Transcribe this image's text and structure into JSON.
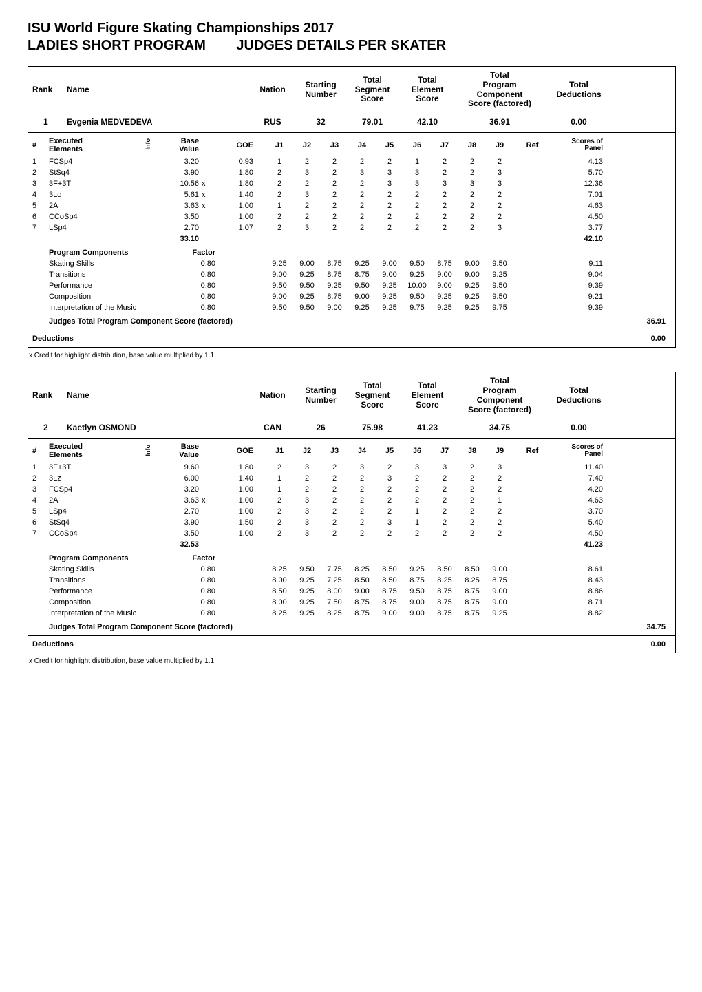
{
  "page": {
    "title_line1": "ISU World Figure Skating Championships 2017",
    "title_line2_a": "LADIES SHORT PROGRAM",
    "title_line2_b": "JUDGES DETAILS PER SKATER"
  },
  "header_labels": {
    "rank": "Rank",
    "name": "Name",
    "nation": "Nation",
    "starting_number_l1": "Starting",
    "starting_number_l2": "Number",
    "total_segment_l1": "Total",
    "total_segment_l2": "Segment",
    "total_segment_l3": "Score",
    "total_element_l1": "Total",
    "total_element_l2": "Element",
    "total_element_l3": "Score",
    "total_pcs_l1": "Total",
    "total_pcs_l2": "Program Component",
    "total_pcs_l3": "Score (factored)",
    "total_ded_l1": "Total",
    "total_ded_l2": "Deductions"
  },
  "elem_header": {
    "num": "#",
    "executed_l1": "Executed",
    "executed_l2": "Elements",
    "info": "Info",
    "base_l1": "Base",
    "base_l2": "Value",
    "goe": "GOE",
    "j": [
      "J1",
      "J2",
      "J3",
      "J4",
      "J5",
      "J6",
      "J7",
      "J8",
      "J9"
    ],
    "ref": "Ref",
    "sop_l1": "Scores of",
    "sop_l2": "Panel"
  },
  "prog_comp_header": {
    "title": "Program Components",
    "factor": "Factor"
  },
  "judges_total_label": "Judges Total Program Component Score (factored)",
  "deductions_label": "Deductions",
  "footnote_text": "x  Credit for highlight distribution, base value multiplied by 1.1",
  "skaters": [
    {
      "rank": "1",
      "name": "Evgenia MEDVEDEVA",
      "nation": "RUS",
      "start_no": "32",
      "seg_score": "79.01",
      "elem_score": "42.10",
      "pcs_score": "36.91",
      "ded_score": "0.00",
      "elements": [
        {
          "n": "1",
          "exec": "FCSp4",
          "info": "",
          "base": "3.20",
          "x": "",
          "goe": "0.93",
          "j": [
            "1",
            "2",
            "2",
            "2",
            "2",
            "1",
            "2",
            "2",
            "2"
          ],
          "ref": "",
          "sop": "4.13"
        },
        {
          "n": "2",
          "exec": "StSq4",
          "info": "",
          "base": "3.90",
          "x": "",
          "goe": "1.80",
          "j": [
            "2",
            "3",
            "2",
            "3",
            "3",
            "3",
            "2",
            "2",
            "3"
          ],
          "ref": "",
          "sop": "5.70"
        },
        {
          "n": "3",
          "exec": "3F+3T",
          "info": "",
          "base": "10.56",
          "x": "x",
          "goe": "1.80",
          "j": [
            "2",
            "2",
            "2",
            "2",
            "3",
            "3",
            "3",
            "3",
            "3"
          ],
          "ref": "",
          "sop": "12.36"
        },
        {
          "n": "4",
          "exec": "3Lo",
          "info": "",
          "base": "5.61",
          "x": "x",
          "goe": "1.40",
          "j": [
            "2",
            "3",
            "2",
            "2",
            "2",
            "2",
            "2",
            "2",
            "2"
          ],
          "ref": "",
          "sop": "7.01"
        },
        {
          "n": "5",
          "exec": "2A",
          "info": "",
          "base": "3.63",
          "x": "x",
          "goe": "1.00",
          "j": [
            "1",
            "2",
            "2",
            "2",
            "2",
            "2",
            "2",
            "2",
            "2"
          ],
          "ref": "",
          "sop": "4.63"
        },
        {
          "n": "6",
          "exec": "CCoSp4",
          "info": "",
          "base": "3.50",
          "x": "",
          "goe": "1.00",
          "j": [
            "2",
            "2",
            "2",
            "2",
            "2",
            "2",
            "2",
            "2",
            "2"
          ],
          "ref": "",
          "sop": "4.50"
        },
        {
          "n": "7",
          "exec": "LSp4",
          "info": "",
          "base": "2.70",
          "x": "",
          "goe": "1.07",
          "j": [
            "2",
            "3",
            "2",
            "2",
            "2",
            "2",
            "2",
            "2",
            "3"
          ],
          "ref": "",
          "sop": "3.77"
        }
      ],
      "base_total": "33.10",
      "sop_total": "42.10",
      "components": [
        {
          "name": "Skating Skills",
          "factor": "0.80",
          "j": [
            "9.25",
            "9.00",
            "8.75",
            "9.25",
            "9.00",
            "9.50",
            "8.75",
            "9.00",
            "9.50"
          ],
          "score": "9.11"
        },
        {
          "name": "Transitions",
          "factor": "0.80",
          "j": [
            "9.00",
            "9.25",
            "8.75",
            "8.75",
            "9.00",
            "9.25",
            "9.00",
            "9.00",
            "9.25"
          ],
          "score": "9.04"
        },
        {
          "name": "Performance",
          "factor": "0.80",
          "j": [
            "9.50",
            "9.50",
            "9.25",
            "9.50",
            "9.25",
            "10.00",
            "9.00",
            "9.25",
            "9.50"
          ],
          "score": "9.39"
        },
        {
          "name": "Composition",
          "factor": "0.80",
          "j": [
            "9.00",
            "9.25",
            "8.75",
            "9.00",
            "9.25",
            "9.50",
            "9.25",
            "9.25",
            "9.50"
          ],
          "score": "9.21"
        },
        {
          "name": "Interpretation of the Music",
          "factor": "0.80",
          "j": [
            "9.50",
            "9.50",
            "9.00",
            "9.25",
            "9.25",
            "9.75",
            "9.25",
            "9.25",
            "9.75"
          ],
          "score": "9.39"
        }
      ],
      "pcs_total": "36.91",
      "ded_total": "0.00"
    },
    {
      "rank": "2",
      "name": "Kaetlyn OSMOND",
      "nation": "CAN",
      "start_no": "26",
      "seg_score": "75.98",
      "elem_score": "41.23",
      "pcs_score": "34.75",
      "ded_score": "0.00",
      "elements": [
        {
          "n": "1",
          "exec": "3F+3T",
          "info": "",
          "base": "9.60",
          "x": "",
          "goe": "1.80",
          "j": [
            "2",
            "3",
            "2",
            "3",
            "2",
            "3",
            "3",
            "2",
            "3"
          ],
          "ref": "",
          "sop": "11.40"
        },
        {
          "n": "2",
          "exec": "3Lz",
          "info": "",
          "base": "6.00",
          "x": "",
          "goe": "1.40",
          "j": [
            "1",
            "2",
            "2",
            "2",
            "3",
            "2",
            "2",
            "2",
            "2"
          ],
          "ref": "",
          "sop": "7.40"
        },
        {
          "n": "3",
          "exec": "FCSp4",
          "info": "",
          "base": "3.20",
          "x": "",
          "goe": "1.00",
          "j": [
            "1",
            "2",
            "2",
            "2",
            "2",
            "2",
            "2",
            "2",
            "2"
          ],
          "ref": "",
          "sop": "4.20"
        },
        {
          "n": "4",
          "exec": "2A",
          "info": "",
          "base": "3.63",
          "x": "x",
          "goe": "1.00",
          "j": [
            "2",
            "3",
            "2",
            "2",
            "2",
            "2",
            "2",
            "2",
            "1"
          ],
          "ref": "",
          "sop": "4.63"
        },
        {
          "n": "5",
          "exec": "LSp4",
          "info": "",
          "base": "2.70",
          "x": "",
          "goe": "1.00",
          "j": [
            "2",
            "3",
            "2",
            "2",
            "2",
            "1",
            "2",
            "2",
            "2"
          ],
          "ref": "",
          "sop": "3.70"
        },
        {
          "n": "6",
          "exec": "StSq4",
          "info": "",
          "base": "3.90",
          "x": "",
          "goe": "1.50",
          "j": [
            "2",
            "3",
            "2",
            "2",
            "3",
            "1",
            "2",
            "2",
            "2"
          ],
          "ref": "",
          "sop": "5.40"
        },
        {
          "n": "7",
          "exec": "CCoSp4",
          "info": "",
          "base": "3.50",
          "x": "",
          "goe": "1.00",
          "j": [
            "2",
            "3",
            "2",
            "2",
            "2",
            "2",
            "2",
            "2",
            "2"
          ],
          "ref": "",
          "sop": "4.50"
        }
      ],
      "base_total": "32.53",
      "sop_total": "41.23",
      "components": [
        {
          "name": "Skating Skills",
          "factor": "0.80",
          "j": [
            "8.25",
            "9.50",
            "7.75",
            "8.25",
            "8.50",
            "9.25",
            "8.50",
            "8.50",
            "9.00"
          ],
          "score": "8.61"
        },
        {
          "name": "Transitions",
          "factor": "0.80",
          "j": [
            "8.00",
            "9.25",
            "7.25",
            "8.50",
            "8.50",
            "8.75",
            "8.25",
            "8.25",
            "8.75"
          ],
          "score": "8.43"
        },
        {
          "name": "Performance",
          "factor": "0.80",
          "j": [
            "8.50",
            "9.25",
            "8.00",
            "9.00",
            "8.75",
            "9.50",
            "8.75",
            "8.75",
            "9.00"
          ],
          "score": "8.86"
        },
        {
          "name": "Composition",
          "factor": "0.80",
          "j": [
            "8.00",
            "9.25",
            "7.50",
            "8.75",
            "8.75",
            "9.00",
            "8.75",
            "8.75",
            "9.00"
          ],
          "score": "8.71"
        },
        {
          "name": "Interpretation of the Music",
          "factor": "0.80",
          "j": [
            "8.25",
            "9.25",
            "8.25",
            "8.75",
            "9.00",
            "9.00",
            "8.75",
            "8.75",
            "9.25"
          ],
          "score": "8.82"
        }
      ],
      "pcs_total": "34.75",
      "ded_total": "0.00"
    }
  ]
}
